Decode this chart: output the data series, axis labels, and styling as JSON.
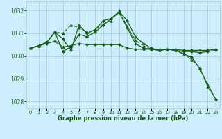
{
  "background_color": "#cceeff",
  "grid_color": "#aacccc",
  "line_color": "#1a5c1a",
  "xlabel": "Graphe pression niveau de la mer (hPa)",
  "ylim": [
    1027.7,
    1032.4
  ],
  "xlim": [
    -0.5,
    23.5
  ],
  "yticks": [
    1028,
    1029,
    1030,
    1031,
    1032
  ],
  "series": [
    {
      "x": [
        0,
        1,
        2,
        3,
        4,
        5,
        6,
        7,
        8,
        9,
        10,
        11,
        12,
        13,
        14,
        15,
        16,
        17,
        18,
        19,
        20,
        21,
        22,
        23
      ],
      "y": [
        1030.35,
        1030.45,
        1030.55,
        1030.65,
        1030.4,
        1030.45,
        1030.55,
        1030.5,
        1030.5,
        1030.5,
        1030.5,
        1030.5,
        1030.35,
        1030.3,
        1030.3,
        1030.3,
        1030.3,
        1030.3,
        1030.3,
        1030.25,
        1030.25,
        1030.25,
        1030.25,
        1030.3
      ],
      "marker": "D",
      "markersize": 2.0,
      "linestyle": "-",
      "linewidth": 0.9
    },
    {
      "x": [
        0,
        1,
        2,
        3,
        4,
        5,
        6,
        7,
        8,
        9,
        10,
        11,
        12,
        13,
        14,
        15,
        16,
        17,
        18,
        19,
        20,
        21,
        22,
        23
      ],
      "y": [
        1030.35,
        1030.45,
        1030.6,
        1031.05,
        1030.75,
        1030.25,
        1031.35,
        1031.0,
        1031.15,
        1031.55,
        1031.65,
        1031.95,
        1031.55,
        1030.85,
        1030.55,
        1030.35,
        1030.25,
        1030.3,
        1030.25,
        1030.1,
        1029.95,
        1029.45,
        1028.75,
        1028.1
      ],
      "marker": "D",
      "markersize": 2.0,
      "linestyle": "-",
      "linewidth": 0.9
    },
    {
      "x": [
        0,
        1,
        2,
        3,
        4,
        5,
        6,
        7,
        8,
        9,
        10,
        11,
        12,
        13,
        14,
        15,
        16,
        17,
        18,
        19,
        20,
        21,
        22,
        23
      ],
      "y": [
        1030.35,
        1030.45,
        1030.6,
        1031.05,
        1031.0,
        1031.35,
        1031.25,
        1031.05,
        1031.15,
        1031.4,
        1031.55,
        1032.0,
        1031.3,
        1030.7,
        1030.45,
        1030.3,
        1030.25,
        1030.3,
        1030.25,
        1030.1,
        1029.85,
        1029.5,
        1028.65,
        1028.1
      ],
      "marker": "^",
      "markersize": 2.5,
      "linestyle": "--",
      "linewidth": 0.8
    },
    {
      "x": [
        0,
        1,
        2,
        3,
        4,
        5,
        6,
        7,
        8,
        9,
        10,
        11,
        12,
        13,
        14,
        15,
        16,
        17,
        18,
        19,
        20,
        21,
        22,
        23
      ],
      "y": [
        1030.35,
        1030.45,
        1030.6,
        1031.05,
        1030.2,
        1030.4,
        1030.95,
        1030.85,
        1031.05,
        1031.35,
        1031.65,
        1031.9,
        1031.25,
        1030.55,
        1030.35,
        1030.3,
        1030.25,
        1030.3,
        1030.25,
        1030.2,
        1030.2,
        1030.15,
        1030.2,
        1030.25
      ],
      "marker": "D",
      "markersize": 2.0,
      "linestyle": "-",
      "linewidth": 0.9
    }
  ]
}
